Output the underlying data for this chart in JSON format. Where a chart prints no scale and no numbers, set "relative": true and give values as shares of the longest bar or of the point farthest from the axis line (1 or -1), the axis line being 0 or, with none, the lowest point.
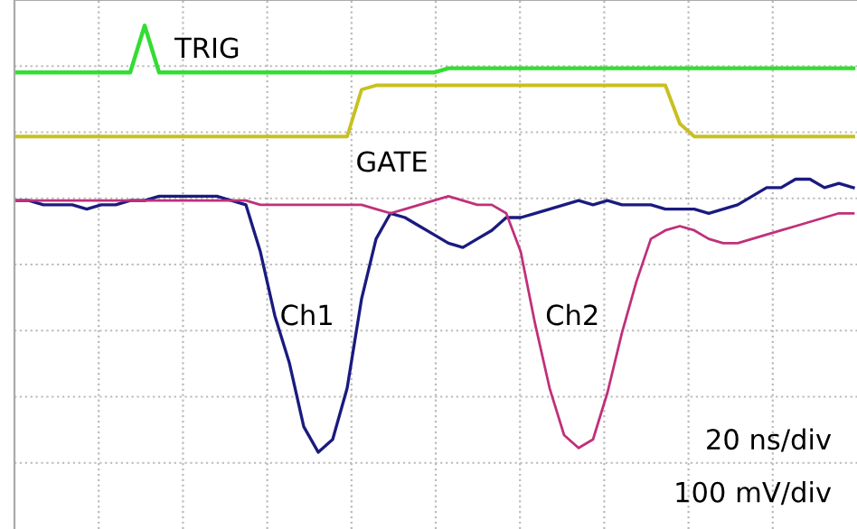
{
  "chart_data": {
    "type": "line",
    "relative": true,
    "grid": true,
    "legend": false,
    "marker": "none",
    "line_style": "solid",
    "categories": [
      null,
      null,
      null,
      null,
      null,
      null,
      null,
      null,
      null,
      null,
      null,
      null,
      null,
      null,
      null,
      null,
      null,
      null,
      null,
      null,
      null,
      null,
      null,
      null,
      null,
      null,
      null,
      null,
      null,
      null,
      null,
      null,
      null,
      null,
      null,
      null,
      null,
      null,
      null,
      null,
      null,
      null,
      null,
      null,
      null,
      null,
      null,
      null,
      null,
      null,
      null,
      null,
      null,
      null,
      null,
      null,
      null,
      null,
      null
    ],
    "series": [
      {
        "name": "TRIG",
        "color": "#33dd33",
        "values": [
          0.89,
          0.89,
          0.89,
          0.89,
          0.89,
          0.89,
          0.89,
          0.89,
          0.89,
          1.0,
          0.89,
          0.89,
          0.89,
          0.89,
          0.89,
          0.89,
          0.89,
          0.89,
          0.89,
          0.89,
          0.89,
          0.89,
          0.89,
          0.89,
          0.89,
          0.89,
          0.89,
          0.89,
          0.89,
          0.89,
          0.9,
          0.9,
          0.9,
          0.9,
          0.9,
          0.9,
          0.9,
          0.9,
          0.9,
          0.9,
          0.9,
          0.9,
          0.9,
          0.9,
          0.9,
          0.9,
          0.9,
          0.9,
          0.9,
          0.9,
          0.9,
          0.9,
          0.9,
          0.9,
          0.9,
          0.9,
          0.9,
          0.9,
          0.9
        ]
      },
      {
        "name": "GATE",
        "color": "#c8c020",
        "values": [
          0.74,
          0.74,
          0.74,
          0.74,
          0.74,
          0.74,
          0.74,
          0.74,
          0.74,
          0.74,
          0.74,
          0.74,
          0.74,
          0.74,
          0.74,
          0.74,
          0.74,
          0.74,
          0.74,
          0.74,
          0.74,
          0.74,
          0.74,
          0.74,
          0.85,
          0.86,
          0.86,
          0.86,
          0.86,
          0.86,
          0.86,
          0.86,
          0.86,
          0.86,
          0.86,
          0.86,
          0.86,
          0.86,
          0.86,
          0.86,
          0.86,
          0.86,
          0.86,
          0.86,
          0.86,
          0.86,
          0.77,
          0.74,
          0.74,
          0.74,
          0.74,
          0.74,
          0.74,
          0.74,
          0.74,
          0.74,
          0.74,
          0.74,
          0.74
        ]
      },
      {
        "name": "Ch1",
        "color": "#1a1a80",
        "values": [
          0.59,
          0.59,
          0.58,
          0.58,
          0.58,
          0.57,
          0.58,
          0.58,
          0.59,
          0.59,
          0.6,
          0.6,
          0.6,
          0.6,
          0.6,
          0.59,
          0.58,
          0.47,
          0.32,
          0.21,
          0.06,
          0.0,
          0.03,
          0.15,
          0.36,
          0.5,
          0.56,
          0.55,
          0.53,
          0.51,
          0.49,
          0.48,
          0.5,
          0.52,
          0.55,
          0.55,
          0.56,
          0.57,
          0.58,
          0.59,
          0.58,
          0.59,
          0.58,
          0.58,
          0.58,
          0.57,
          0.57,
          0.57,
          0.56,
          0.57,
          0.58,
          0.6,
          0.62,
          0.62,
          0.64,
          0.64,
          0.62,
          0.63,
          0.62
        ]
      },
      {
        "name": "Ch2",
        "color": "#c0307a",
        "values": [
          0.59,
          0.59,
          0.59,
          0.59,
          0.59,
          0.59,
          0.59,
          0.59,
          0.59,
          0.59,
          0.59,
          0.59,
          0.59,
          0.59,
          0.59,
          0.59,
          0.59,
          0.58,
          0.58,
          0.58,
          0.58,
          0.58,
          0.58,
          0.58,
          0.58,
          0.57,
          0.56,
          0.57,
          0.58,
          0.59,
          0.6,
          0.59,
          0.58,
          0.58,
          0.56,
          0.47,
          0.3,
          0.15,
          0.04,
          0.01,
          0.03,
          0.14,
          0.28,
          0.4,
          0.5,
          0.52,
          0.53,
          0.52,
          0.5,
          0.49,
          0.49,
          0.5,
          0.51,
          0.52,
          0.53,
          0.54,
          0.55,
          0.56,
          0.56
        ]
      }
    ],
    "annotations": [
      "20 ns/div",
      "100 mV/div"
    ]
  }
}
